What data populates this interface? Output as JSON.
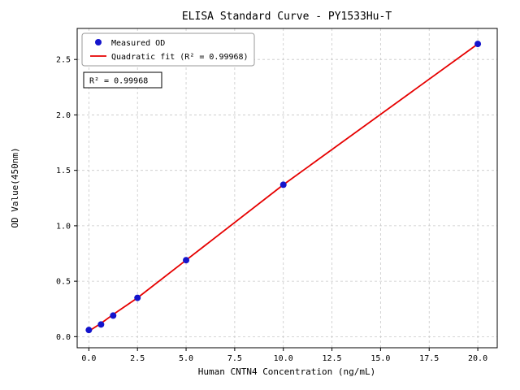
{
  "figure": {
    "title": "ELISA Standard Curve - PY1533Hu-T",
    "xlabel": "Human CNTN4 Concentration (ng/mL)",
    "ylabel": "OD Value(450nm)"
  },
  "legend": {
    "items": [
      {
        "label": "Measured OD",
        "marker": "dot"
      },
      {
        "label": "Quadratic fit (R² = 0.99968)",
        "marker": "line"
      }
    ]
  },
  "annotation": {
    "r_squared_label": "R² = 0.99968"
  },
  "colors": {
    "points": "#1414cc",
    "fit_line": "#e60000",
    "grid": "#c8c8c8",
    "axes": "#000000",
    "background": "#ffffff"
  },
  "chart_data": {
    "type": "scatter",
    "title": "ELISA Standard Curve - PY1533Hu-T",
    "xlabel": "Human CNTN4 Concentration (ng/mL)",
    "ylabel": "OD Value(450nm)",
    "xlim": [
      -0.6,
      21.0
    ],
    "ylim": [
      -0.1,
      2.78
    ],
    "xticks": [
      0.0,
      2.5,
      5.0,
      7.5,
      10.0,
      12.5,
      15.0,
      17.5,
      20.0
    ],
    "yticks": [
      0.0,
      0.5,
      1.0,
      1.5,
      2.0,
      2.5
    ],
    "grid": true,
    "grid_style": "dashed",
    "legend_position": "upper-left",
    "r_squared": 0.99968,
    "series": [
      {
        "name": "Measured OD",
        "type": "scatter",
        "color": "#1414cc",
        "x": [
          0,
          0.625,
          1.25,
          2.5,
          5.0,
          10.0,
          20.0
        ],
        "y": [
          0.06,
          0.11,
          0.19,
          0.35,
          0.69,
          1.37,
          2.64
        ]
      },
      {
        "name": "Quadratic fit (R² = 0.99968)",
        "type": "line",
        "color": "#e60000",
        "x": [
          0,
          0.625,
          1.25,
          2.5,
          5.0,
          10.0,
          20.0
        ],
        "y": [
          0.05,
          0.12,
          0.2,
          0.35,
          0.69,
          1.37,
          2.64
        ]
      }
    ]
  }
}
